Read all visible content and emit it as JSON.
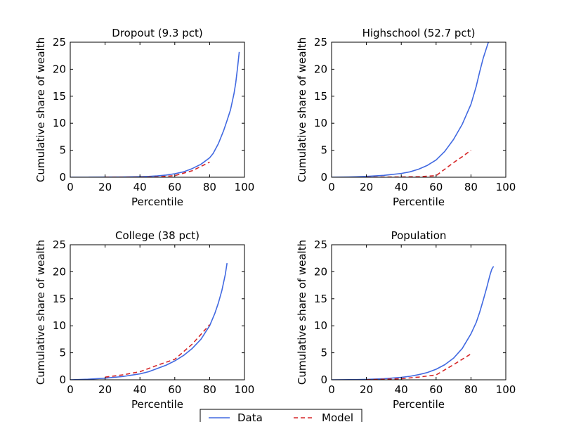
{
  "chart_data": [
    {
      "type": "line",
      "title": "Dropout (9.3 pct)",
      "xlabel": "Percentile",
      "ylabel": "Cumulative share of wealth",
      "xlim": [
        0,
        100
      ],
      "ylim": [
        0,
        25
      ],
      "xticks": [
        0,
        20,
        40,
        60,
        80,
        100
      ],
      "yticks": [
        0,
        5,
        10,
        15,
        20,
        25
      ],
      "series": [
        {
          "name": "Data",
          "style": "solid",
          "color": "#4169e1",
          "x": [
            0,
            10,
            20,
            30,
            40,
            45,
            50,
            55,
            60,
            65,
            70,
            75,
            80,
            82,
            85,
            88,
            90,
            92,
            94,
            95,
            96,
            97
          ],
          "y": [
            0,
            0,
            0.02,
            0.05,
            0.1,
            0.15,
            0.25,
            0.4,
            0.65,
            1.0,
            1.6,
            2.4,
            3.6,
            4.4,
            6.2,
            8.6,
            10.5,
            12.5,
            15.5,
            17.5,
            20.2,
            23.2
          ]
        },
        {
          "name": "Model",
          "style": "dashed",
          "color": "#d62728",
          "x": [
            20,
            40,
            50,
            60,
            70,
            80
          ],
          "y": [
            0,
            0,
            0.05,
            0.3,
            1.2,
            2.8
          ]
        }
      ]
    },
    {
      "type": "line",
      "title": "Highschool (52.7 pct)",
      "xlabel": "Percentile",
      "ylabel": "Cumulative share of wealth",
      "xlim": [
        0,
        100
      ],
      "ylim": [
        0,
        25
      ],
      "xticks": [
        0,
        20,
        40,
        60,
        80,
        100
      ],
      "yticks": [
        0,
        5,
        10,
        15,
        20,
        25
      ],
      "series": [
        {
          "name": "Data",
          "style": "solid",
          "color": "#4169e1",
          "x": [
            0,
            10,
            20,
            30,
            40,
            45,
            50,
            55,
            60,
            65,
            70,
            75,
            80,
            83,
            85,
            87,
            89,
            90
          ],
          "y": [
            0,
            0.05,
            0.15,
            0.35,
            0.7,
            1.0,
            1.5,
            2.2,
            3.2,
            4.8,
            7.0,
            9.8,
            13.5,
            16.8,
            19.5,
            22.0,
            24.0,
            25.0
          ]
        },
        {
          "name": "Model",
          "style": "dashed",
          "color": "#d62728",
          "x": [
            20,
            40,
            50,
            60,
            65,
            70,
            75,
            80
          ],
          "y": [
            0,
            0.05,
            0.1,
            0.3,
            1.5,
            2.7,
            3.8,
            5.0
          ]
        }
      ]
    },
    {
      "type": "line",
      "title": "College (38 pct)",
      "xlabel": "Percentile",
      "ylabel": "Cumulative share of wealth",
      "xlim": [
        0,
        100
      ],
      "ylim": [
        0,
        25
      ],
      "xticks": [
        0,
        20,
        40,
        60,
        80,
        100
      ],
      "yticks": [
        0,
        5,
        10,
        15,
        20,
        25
      ],
      "series": [
        {
          "name": "Data",
          "style": "solid",
          "color": "#4169e1",
          "x": [
            0,
            10,
            20,
            30,
            40,
            45,
            50,
            55,
            60,
            65,
            70,
            75,
            80,
            83,
            85,
            87,
            89,
            90
          ],
          "y": [
            0,
            0.1,
            0.3,
            0.6,
            1.1,
            1.5,
            2.1,
            2.7,
            3.5,
            4.5,
            5.8,
            7.5,
            10.0,
            12.3,
            14.2,
            16.5,
            19.5,
            21.6
          ]
        },
        {
          "name": "Model",
          "style": "dashed",
          "color": "#d62728",
          "x": [
            20,
            30,
            40,
            50,
            60,
            70,
            80
          ],
          "y": [
            0.5,
            0.9,
            1.5,
            2.7,
            3.8,
            6.6,
            10.2
          ]
        }
      ]
    },
    {
      "type": "line",
      "title": "Population",
      "xlabel": "Percentile",
      "ylabel": "Cumulative share of wealth",
      "xlim": [
        0,
        100
      ],
      "ylim": [
        0,
        25
      ],
      "xticks": [
        0,
        20,
        40,
        60,
        80,
        100
      ],
      "yticks": [
        0,
        5,
        10,
        15,
        20,
        25
      ],
      "series": [
        {
          "name": "Data",
          "style": "solid",
          "color": "#4169e1",
          "x": [
            0,
            10,
            20,
            30,
            40,
            45,
            50,
            55,
            60,
            65,
            70,
            75,
            80,
            83,
            85,
            87,
            89,
            91,
            92,
            93
          ],
          "y": [
            0,
            0.02,
            0.08,
            0.2,
            0.45,
            0.65,
            0.95,
            1.35,
            1.95,
            2.8,
            4.0,
            5.8,
            8.5,
            10.6,
            12.5,
            14.7,
            17.0,
            19.5,
            20.5,
            21.0
          ]
        },
        {
          "name": "Model",
          "style": "dashed",
          "color": "#d62728",
          "x": [
            20,
            40,
            50,
            60,
            70,
            80
          ],
          "y": [
            0,
            0.2,
            0.5,
            0.9,
            2.8,
            4.8
          ]
        }
      ]
    }
  ],
  "legend": {
    "placement": "bottom-center",
    "entries": [
      {
        "label": "Data",
        "style": "solid",
        "color": "#4169e1"
      },
      {
        "label": "Model",
        "style": "dashed",
        "color": "#d62728"
      }
    ]
  }
}
